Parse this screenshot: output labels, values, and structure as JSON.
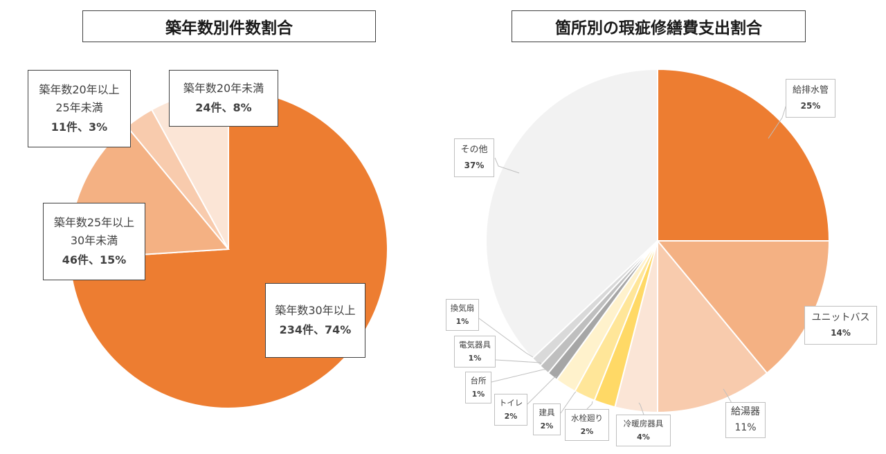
{
  "chart_data": [
    {
      "type": "pie",
      "title": "築年数別件数割合",
      "slices": [
        {
          "name": "築年数30年以上",
          "value": 74,
          "value_label": "234件、74%",
          "color": "#ED7D31"
        },
        {
          "name": "築年数25年以上30年未満",
          "value": 15,
          "value_label": "46件、15%",
          "color": "#F4B183"
        },
        {
          "name": "築年数20年以上25年未満",
          "value": 3,
          "value_label": "11件、3%",
          "color": "#F8CBAD"
        },
        {
          "name": "築年数20年未満",
          "value": 8,
          "value_label": "24件、8%",
          "color": "#FBE5D6"
        }
      ],
      "labels": [
        {
          "lines": [
            "築年数30年以上"
          ],
          "value": "234件、74%"
        },
        {
          "lines": [
            "築年数25年以上",
            "30年未満"
          ],
          "value": "46件、15%"
        },
        {
          "lines": [
            "築年数20年以上",
            "25年未満"
          ],
          "value": "11件、3%"
        },
        {
          "lines": [
            "築年数20年未満"
          ],
          "value": "24件、8%"
        }
      ]
    },
    {
      "type": "pie",
      "title": "箇所別の瑕疵修繕費支出割合",
      "slices": [
        {
          "name": "給排水管",
          "value": 25,
          "value_label": "25%",
          "color": "#ED7D31"
        },
        {
          "name": "ユニットバス",
          "value": 14,
          "value_label": "14%",
          "color": "#F4B183"
        },
        {
          "name": "給湯器",
          "value": 11,
          "value_label": "11%",
          "color": "#F8CBAD"
        },
        {
          "name": "冷暖房器具",
          "value": 4,
          "value_label": "4%",
          "color": "#FBE5D6"
        },
        {
          "name": "水栓廻り",
          "value": 2,
          "value_label": "2%",
          "color": "#FFD966"
        },
        {
          "name": "建具",
          "value": 2,
          "value_label": "2%",
          "color": "#FFE699"
        },
        {
          "name": "トイレ",
          "value": 2,
          "value_label": "2%",
          "color": "#FFF2CC"
        },
        {
          "name": "台所",
          "value": 1,
          "value_label": "1%",
          "color": "#A6A6A6"
        },
        {
          "name": "電気器具",
          "value": 1,
          "value_label": "1%",
          "color": "#BFBFBF"
        },
        {
          "name": "換気扇",
          "value": 1,
          "value_label": "1%",
          "color": "#D9D9D9"
        },
        {
          "name": "その他",
          "value": 37,
          "value_label": "37%",
          "color": "#F2F2F2"
        }
      ]
    }
  ]
}
